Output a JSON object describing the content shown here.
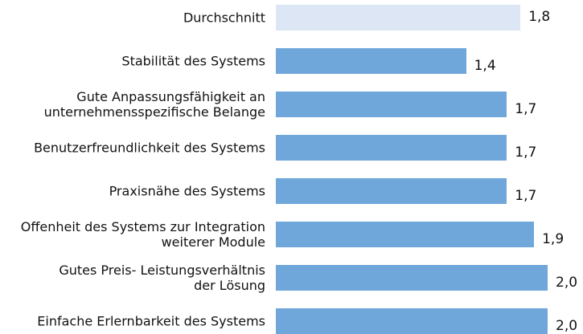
{
  "chart_data": {
    "type": "bar",
    "orientation": "horizontal",
    "categories": [
      "Durchschnitt",
      "Stabilität des Systems",
      "Gute Anpassungsfähigkeit an\nunternehmensspezifische Belange",
      "Benutzerfreundlichkeit des Systems",
      "Praxisnähe des Systems",
      "Offenheit des Systems zur Integration\nweiterer Module",
      "Gutes Preis- Leistungsverhältnis\nder Lösung",
      "Einfache Erlernbarkeit des Systems"
    ],
    "values": [
      1.8,
      1.4,
      1.7,
      1.7,
      1.7,
      1.9,
      2.0,
      2.0
    ],
    "value_labels": [
      "1,8",
      "1,4",
      "1,7",
      "1,7",
      "1,7",
      "1,9",
      "2,0",
      "2,0"
    ],
    "colors": [
      "#dce6f4",
      "#6fa7da",
      "#6fa7da",
      "#6fa7da",
      "#6fa7da",
      "#6fa7da",
      "#6fa7da",
      "#6fa7da"
    ]
  }
}
